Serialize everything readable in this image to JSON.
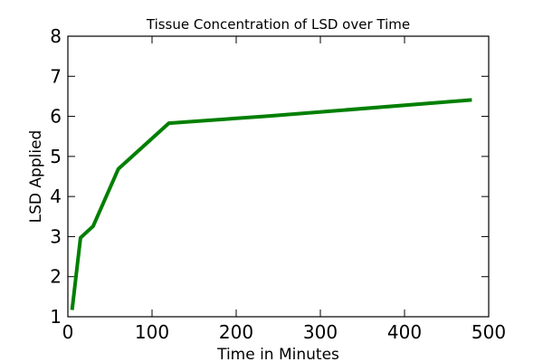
{
  "chart_data": {
    "type": "line",
    "title": "Tissue Concentration of LSD over Time",
    "xlabel": "Time in Minutes",
    "ylabel": "LSD Applied",
    "xlim": [
      0,
      500
    ],
    "ylim": [
      1,
      8
    ],
    "x_ticks": [
      0,
      100,
      200,
      300,
      400,
      500
    ],
    "y_ticks": [
      1,
      2,
      3,
      4,
      5,
      6,
      7,
      8
    ],
    "x_tick_labels": [
      "0",
      "100",
      "200",
      "300",
      "400",
      "500"
    ],
    "y_tick_labels": [
      "1",
      "2",
      "3",
      "4",
      "5",
      "6",
      "7",
      "8"
    ],
    "grid": false,
    "series": [
      {
        "color": "#007f00",
        "x": [
          5,
          15,
          30,
          60,
          120,
          240,
          480
        ],
        "y": [
          1.17,
          2.97,
          3.26,
          4.69,
          5.83,
          6.01,
          6.41
        ]
      }
    ]
  }
}
